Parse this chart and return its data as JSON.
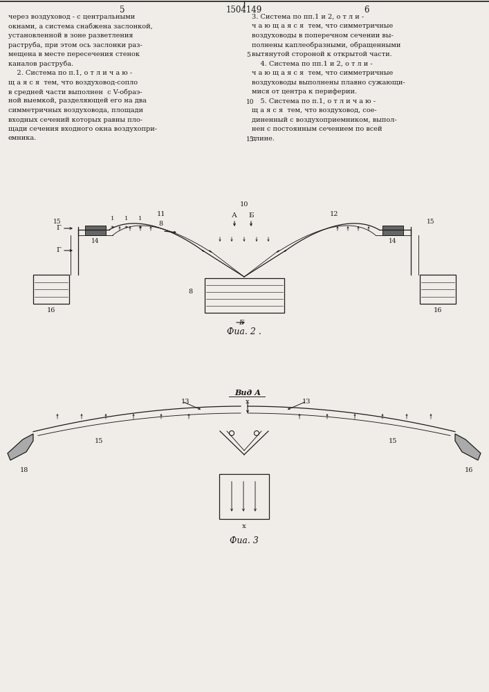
{
  "page_title": "1504149",
  "page_col_left": "5",
  "page_col_right": "6",
  "fig2_caption": "Фиа. 2 .",
  "fig3_caption": "Фиа. 3",
  "bg_color": "#f0ede8",
  "text_color": "#1a1a1a",
  "line_color": "#1a1a1a"
}
